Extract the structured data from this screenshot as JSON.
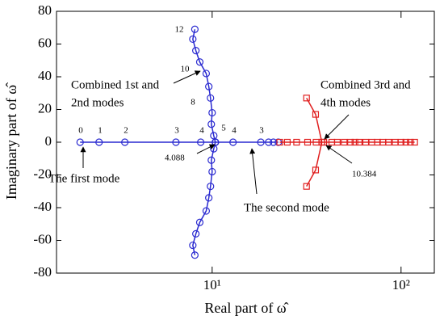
{
  "chart_data": {
    "type": "line",
    "xlabel": "Real part of ω̂",
    "ylabel": "Imaginary part of ω̂",
    "xscale": "log",
    "xlim": [
      1.5,
      150
    ],
    "ylim": [
      -80,
      80
    ],
    "xticks": [
      {
        "value": 10,
        "label": "10¹"
      },
      {
        "value": 100,
        "label": "10²"
      }
    ],
    "yticks": [
      -80,
      -60,
      -40,
      -20,
      0,
      20,
      40,
      60,
      80
    ],
    "series": [
      {
        "color": "#2a2ad0",
        "marker": "circle",
        "x": [
          2,
          2.52,
          3.45,
          6.43,
          8.7,
          10.4
        ],
        "values": [
          0,
          0,
          0,
          0,
          0,
          0
        ]
      },
      {
        "color": "#2a2ad0",
        "marker": "circle",
        "x": [
          22.4,
          21.1,
          19.9,
          18.1,
          12.9,
          10.4
        ],
        "values": [
          0,
          0,
          0,
          0,
          0,
          0
        ]
      },
      {
        "color": "#2a2ad0",
        "marker": "circle",
        "x": [
          10.4,
          10.2,
          9.9,
          10,
          9.8,
          9.6,
          9.3,
          8.6,
          8.2,
          7.9,
          8.1
        ],
        "values": [
          0,
          4,
          11,
          18,
          27,
          34,
          42,
          49,
          56,
          63,
          69
        ]
      },
      {
        "color": "#2a2ad0",
        "marker": "circle",
        "x": [
          10.4,
          10.2,
          9.9,
          10,
          9.8,
          9.6,
          9.3,
          8.6,
          8.2,
          7.9,
          8.1
        ],
        "values": [
          0,
          -4,
          -11,
          -18,
          -27,
          -34,
          -42,
          -49,
          -56,
          -63,
          -69
        ]
      },
      {
        "color": "#e02020",
        "marker": "square",
        "x": [
          38.1,
          35.3,
          31.6
        ],
        "values": [
          0,
          17,
          27
        ]
      },
      {
        "color": "#e02020",
        "marker": "square",
        "x": [
          38.1,
          35.3,
          31.6
        ],
        "values": [
          0,
          -17,
          -27
        ]
      },
      {
        "color": "#e02020",
        "marker": "square",
        "x": [
          22.8,
          25,
          28,
          32,
          35.5,
          39,
          43,
          46,
          50,
          54,
          57,
          60,
          65,
          70,
          75,
          80,
          86,
          93,
          100,
          106,
          112,
          118
        ],
        "values": [
          0,
          0,
          0,
          0,
          0,
          0,
          0,
          0,
          0,
          0,
          0,
          0,
          0,
          0,
          0,
          0,
          0,
          0,
          0,
          0,
          0,
          0
        ]
      }
    ],
    "annotations": [
      {
        "lines": [
          "Combined 1st and",
          "2nd modes"
        ]
      },
      {
        "lines": [
          "Combined 3rd and",
          "4th modes"
        ]
      },
      {
        "lines": [
          "The first mode"
        ]
      },
      {
        "lines": [
          "The second mode"
        ]
      },
      {
        "lines": [
          "4.088"
        ]
      },
      {
        "lines": [
          "10.384"
        ]
      },
      {
        "lines": [
          "0"
        ]
      },
      {
        "lines": [
          "1"
        ]
      },
      {
        "lines": [
          "2"
        ]
      },
      {
        "lines": [
          "3"
        ]
      },
      {
        "lines": [
          "4"
        ]
      },
      {
        "lines": [
          "4"
        ]
      },
      {
        "lines": [
          "3"
        ]
      },
      {
        "lines": [
          "5"
        ]
      },
      {
        "lines": [
          "8"
        ]
      },
      {
        "lines": [
          "10"
        ]
      },
      {
        "lines": [
          "12"
        ]
      }
    ]
  }
}
